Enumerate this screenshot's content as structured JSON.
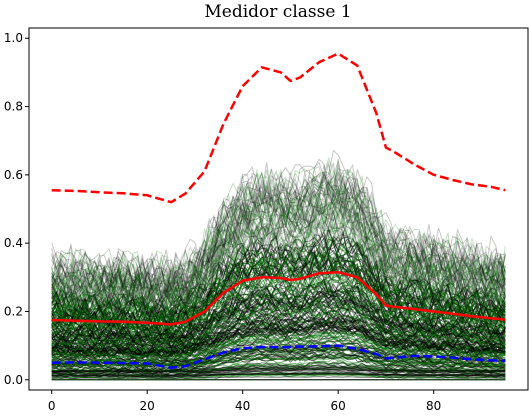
{
  "chart_data": {
    "type": "line",
    "title": "Medidor classe 1",
    "xlabel": "",
    "ylabel": "",
    "xlim": [
      -4.75,
      99.75
    ],
    "ylim": [
      -0.03,
      1.03
    ],
    "xticks": [
      0,
      20,
      40,
      60,
      80
    ],
    "yticks": [
      0.0,
      0.2,
      0.4,
      0.6,
      0.8,
      1.0
    ],
    "ytick_labels": [
      "0.0",
      "0.2",
      "0.4",
      "0.6",
      "0.8",
      "1.0"
    ],
    "grid": false,
    "legend": "none",
    "background_traces": {
      "description_colors": [
        "#000000",
        "#006400",
        "#008000"
      ],
      "count_depicted": "many"
    },
    "series": [
      {
        "style": "dashed",
        "color": "#ff0000",
        "x": [
          0,
          5,
          10,
          15,
          20,
          25,
          28,
          32,
          36,
          40,
          44,
          48,
          50,
          52,
          56,
          60,
          64,
          68,
          70,
          72,
          76,
          80,
          84,
          88,
          92,
          95
        ],
        "values": [
          0.555,
          0.553,
          0.549,
          0.546,
          0.54,
          0.52,
          0.545,
          0.61,
          0.75,
          0.86,
          0.915,
          0.9,
          0.875,
          0.885,
          0.93,
          0.955,
          0.92,
          0.78,
          0.68,
          0.665,
          0.63,
          0.6,
          0.585,
          0.572,
          0.565,
          0.555
        ]
      },
      {
        "style": "solid",
        "color": "#ff0000",
        "x": [
          0,
          5,
          10,
          15,
          20,
          25,
          28,
          32,
          36,
          40,
          44,
          48,
          50,
          52,
          56,
          60,
          64,
          68,
          70,
          72,
          76,
          80,
          84,
          88,
          92,
          95
        ],
        "values": [
          0.175,
          0.173,
          0.171,
          0.17,
          0.167,
          0.162,
          0.17,
          0.2,
          0.255,
          0.29,
          0.3,
          0.298,
          0.292,
          0.296,
          0.312,
          0.315,
          0.3,
          0.25,
          0.217,
          0.213,
          0.207,
          0.2,
          0.193,
          0.186,
          0.18,
          0.176
        ]
      },
      {
        "style": "dashed",
        "color": "#0000ff",
        "x": [
          0,
          5,
          10,
          15,
          20,
          25,
          28,
          32,
          36,
          40,
          44,
          48,
          50,
          52,
          56,
          60,
          64,
          68,
          70,
          72,
          76,
          80,
          84,
          88,
          92,
          95
        ],
        "values": [
          0.05,
          0.051,
          0.05,
          0.049,
          0.048,
          0.035,
          0.04,
          0.06,
          0.08,
          0.092,
          0.096,
          0.095,
          0.096,
          0.097,
          0.098,
          0.1,
          0.09,
          0.075,
          0.063,
          0.065,
          0.07,
          0.068,
          0.065,
          0.06,
          0.057,
          0.055
        ]
      }
    ]
  }
}
